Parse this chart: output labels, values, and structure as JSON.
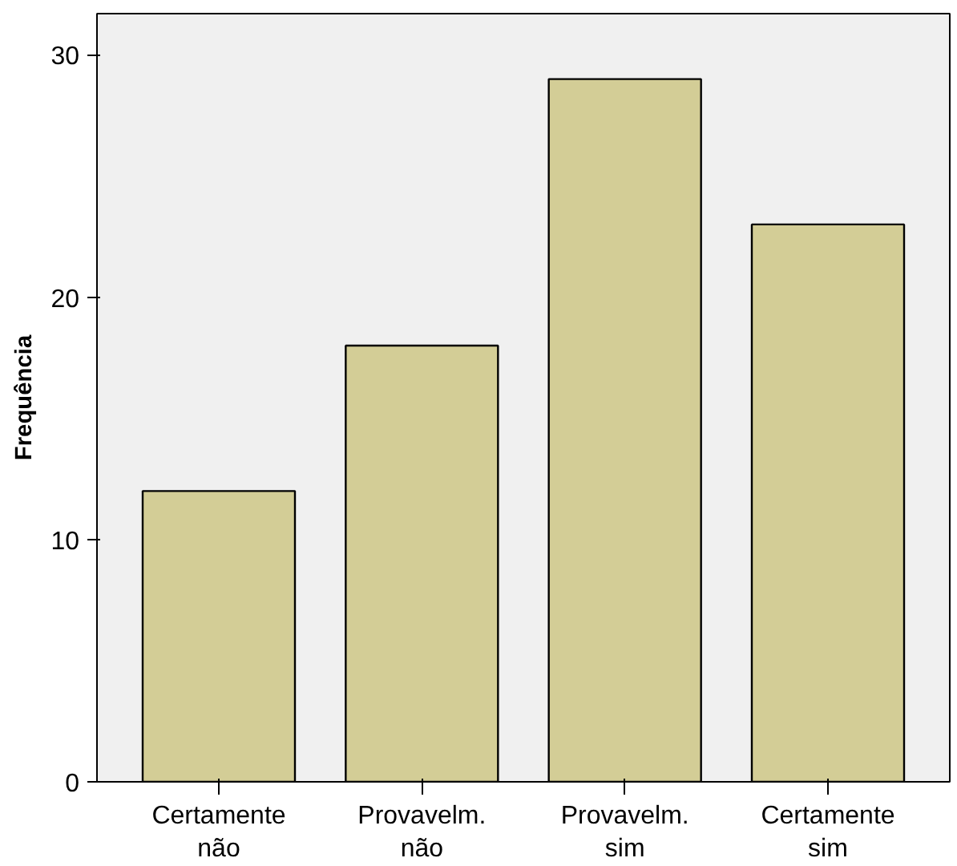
{
  "chart_data": {
    "type": "bar",
    "ylabel": "Frequência",
    "categories": [
      "Certamente não",
      "Provavelm. não",
      "Provavelm. sim",
      "Certamente sim"
    ],
    "values": [
      12,
      18,
      29,
      23
    ],
    "color": "#d3cd96",
    "ylim": [
      0,
      31.7
    ],
    "yticks": [
      0,
      10,
      20,
      30
    ],
    "grid": false
  }
}
